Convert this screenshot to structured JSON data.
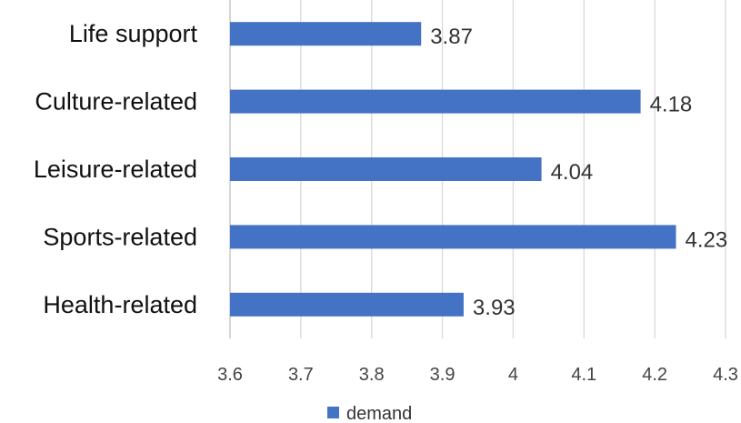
{
  "chart_data": {
    "type": "bar",
    "orientation": "horizontal",
    "categories": [
      "Life support",
      "Culture-related",
      "Leisure-related",
      "Sports-related",
      "Health-related"
    ],
    "series": [
      {
        "name": "demand",
        "values": [
          3.87,
          4.18,
          4.04,
          4.23,
          3.93
        ]
      }
    ],
    "data_labels": [
      "3.87",
      "4.18",
      "4.04",
      "4.23",
      "3.93"
    ],
    "xlim": [
      3.6,
      4.3
    ],
    "xticks": [
      "3.6",
      "3.7",
      "3.8",
      "3.9",
      "4",
      "4.1",
      "4.2",
      "4.3"
    ],
    "grid": true,
    "legend_position": "bottom",
    "colors": {
      "bar": "#4472c4",
      "grid": "#d9d9d9",
      "axis": "#bfbfbf"
    }
  }
}
